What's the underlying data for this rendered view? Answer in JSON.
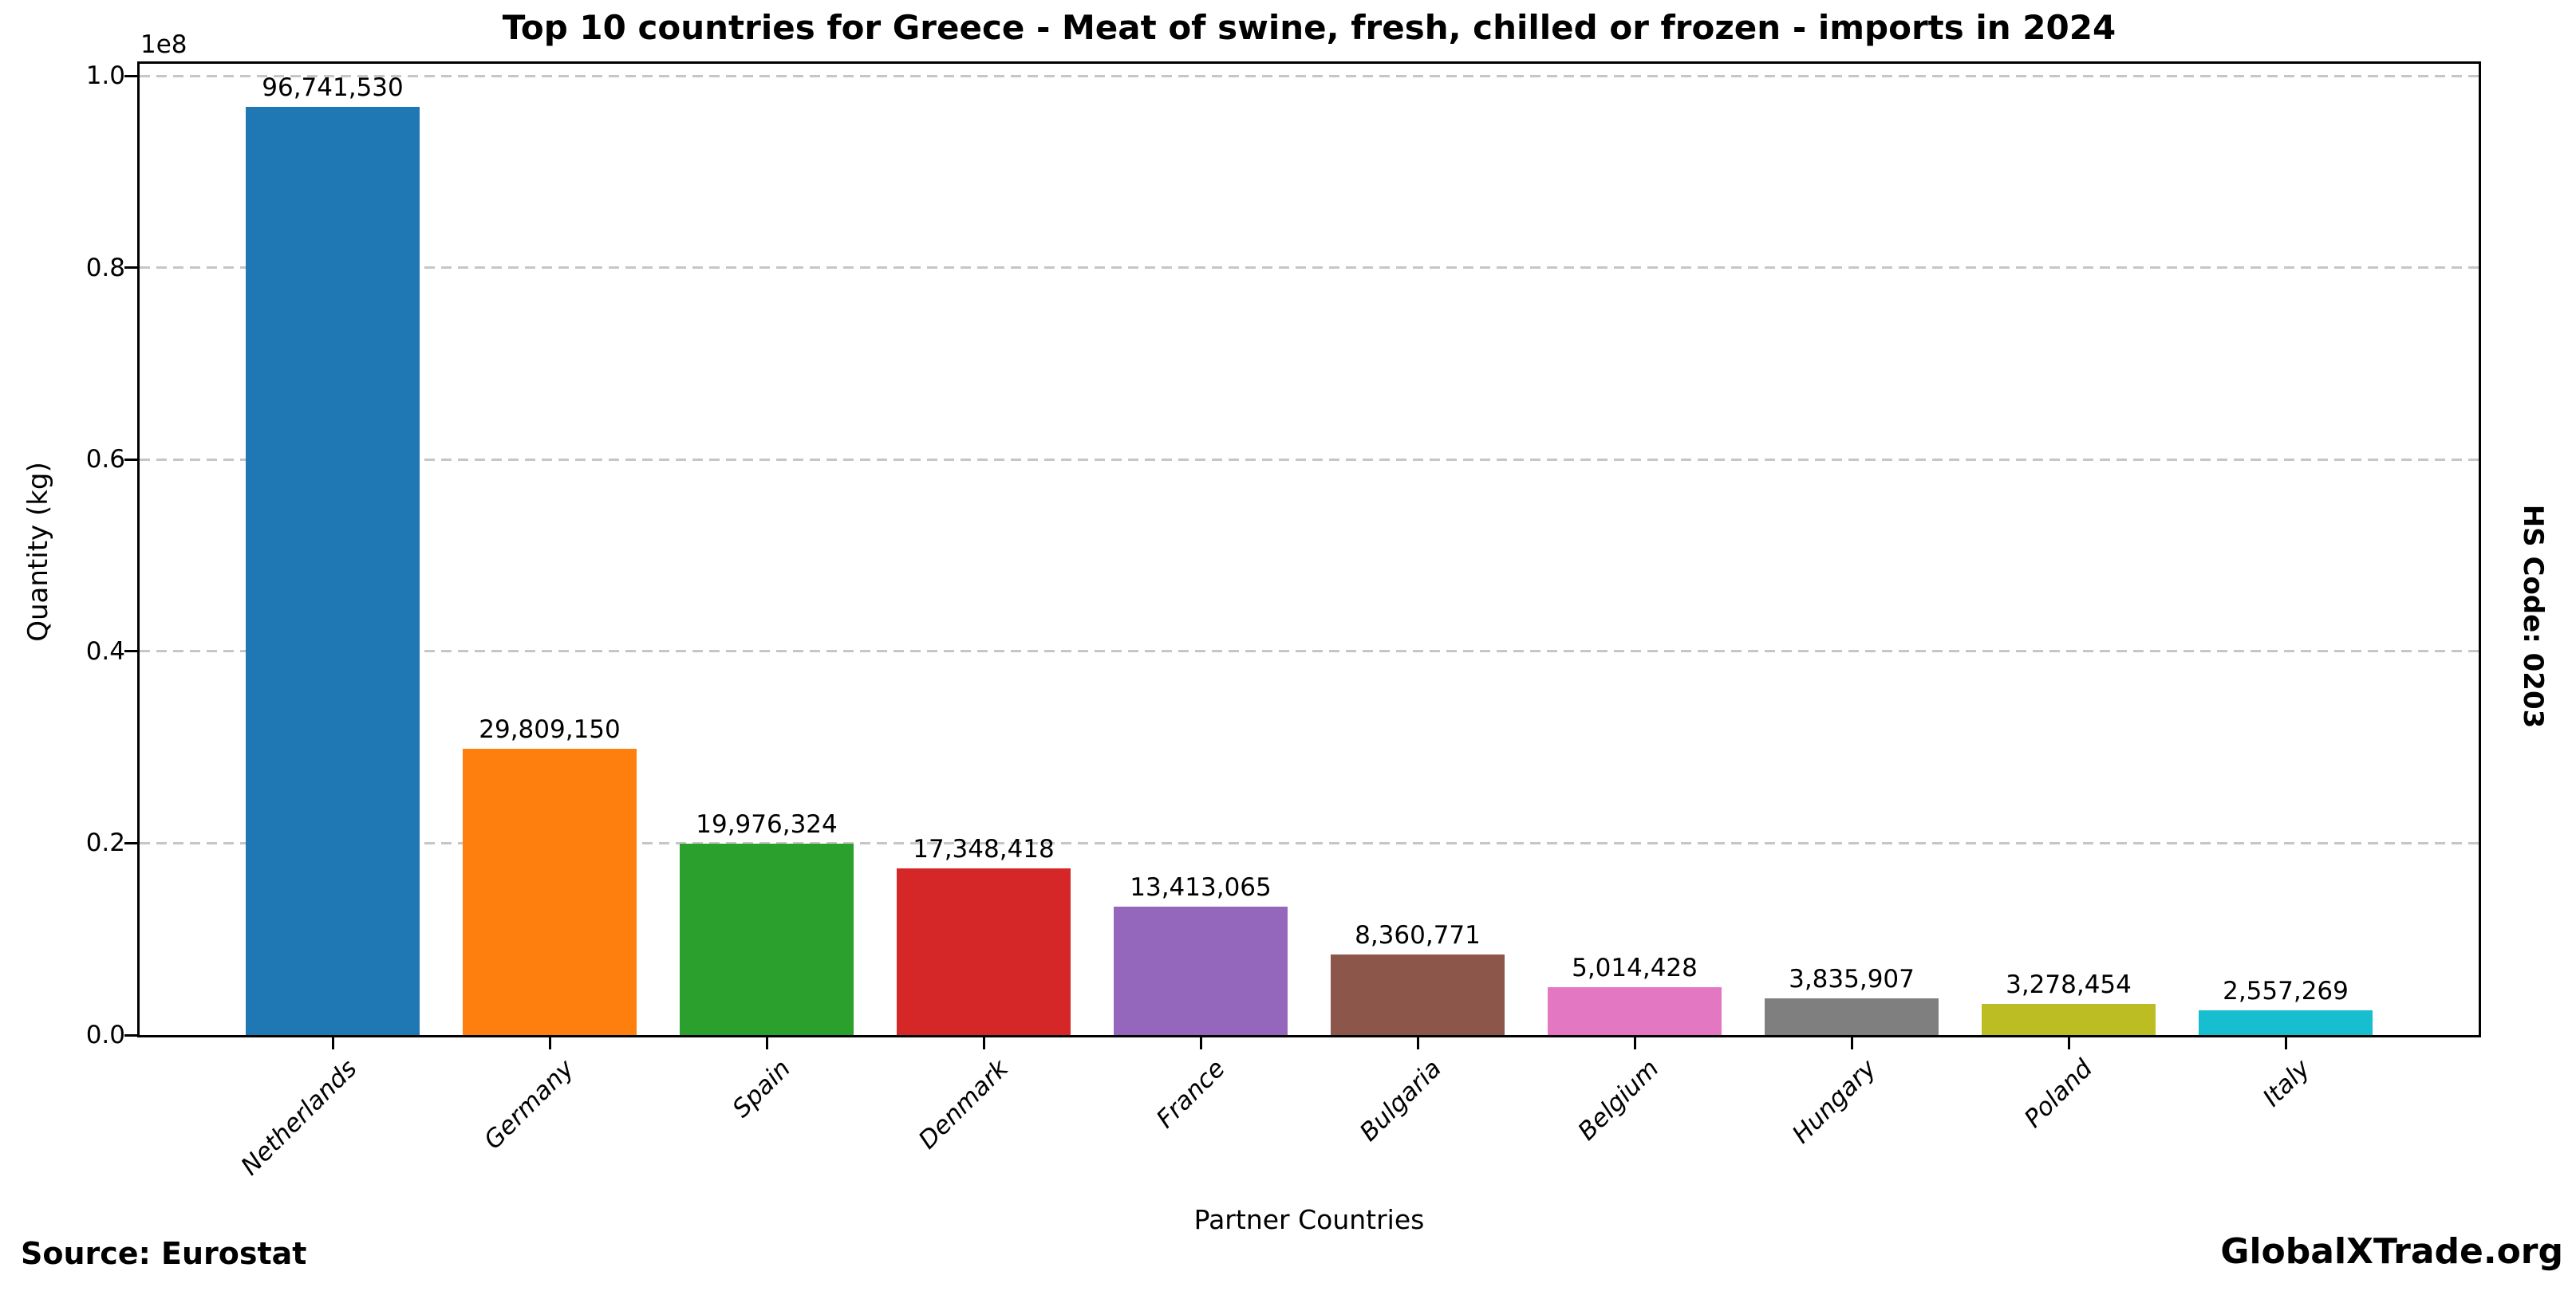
{
  "title": "Top 10 countries for Greece - Meat of swine, fresh, chilled or frozen - imports in 2024",
  "side_label": "HS Code: 0203",
  "footer": {
    "source": "Source: Eurostat",
    "brand": "GlobalXTrade.org"
  },
  "chart_data": {
    "type": "bar",
    "title": "Top 10 countries for Greece - Meat of swine, fresh, chilled or frozen - imports in 2024",
    "xlabel": "Partner Countries",
    "ylabel": "Quantity (kg)",
    "y_offset_text": "1e8",
    "ylim": [
      0,
      101250000
    ],
    "grid": "dashed-horizontal",
    "legend": "none",
    "categories": [
      "Netherlands",
      "Germany",
      "Spain",
      "Denmark",
      "France",
      "Bulgaria",
      "Belgium",
      "Hungary",
      "Poland",
      "Italy"
    ],
    "values": [
      96741530,
      29809150,
      19976324,
      17348418,
      13413065,
      8360771,
      5014428,
      3835907,
      3278454,
      2557269
    ],
    "value_labels": [
      "96,741,530",
      "29,809,150",
      "19,976,324",
      "17,348,418",
      "13,413,065",
      "8,360,771",
      "5,014,428",
      "3,835,907",
      "3,278,454",
      "2,557,269"
    ],
    "bar_colors": [
      "#1f77b4",
      "#ff7f0e",
      "#2ca02c",
      "#d62728",
      "#9467bd",
      "#8c564b",
      "#e377c2",
      "#7f7f7f",
      "#bcbd22",
      "#17becf"
    ],
    "yticks": {
      "values": [
        0,
        20000000,
        40000000,
        60000000,
        80000000,
        100000000
      ],
      "labels": [
        "0.0",
        "0.2",
        "0.4",
        "0.6",
        "0.8",
        "1.0"
      ]
    },
    "grid_color": "#c6c6c6",
    "axis_color": "#000000"
  }
}
